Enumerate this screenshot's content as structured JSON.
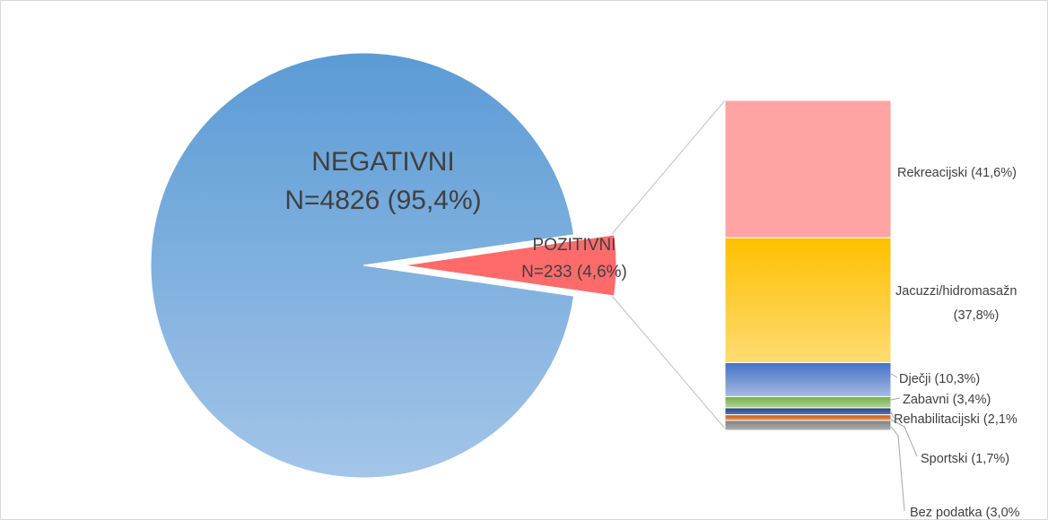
{
  "chart_data": {
    "type": "bar-of-pie",
    "pie": {
      "slices": [
        {
          "name": "NEGATIVNI",
          "label": "N=4826 (95,4%)",
          "value": 4826,
          "percent": 95.4,
          "color": "#5b9bd5"
        },
        {
          "name": "POZITIVNI",
          "label": "N=233 (4,6%)",
          "value": 233,
          "percent": 4.6,
          "color": "#ff6b6b"
        }
      ]
    },
    "bar": {
      "breakdown_of": "POZITIVNI",
      "segments": [
        {
          "label": "Rekreacijski (41,6%)",
          "percent": 41.6,
          "color": "#ffa3a3"
        },
        {
          "label": "Jacuzzi/hidromasažn",
          "label2": "(37,8%)",
          "percent": 37.8,
          "color": "#ffc000"
        },
        {
          "label": "Dječji (10,3%)",
          "percent": 10.3,
          "color": "#4472c4"
        },
        {
          "label": "Zabavni (3,4%)",
          "percent": 3.4,
          "color": "#70ad47"
        },
        {
          "label": "Rehabilitacijski (2,1%",
          "percent": 2.1,
          "color": "#264478"
        },
        {
          "label": "Sportski (1,7%)",
          "percent": 1.7,
          "color": "#c55a11"
        },
        {
          "label": "Bez podatka (3,0%",
          "percent": 3.0,
          "color": "#7f7f7f"
        }
      ]
    }
  }
}
